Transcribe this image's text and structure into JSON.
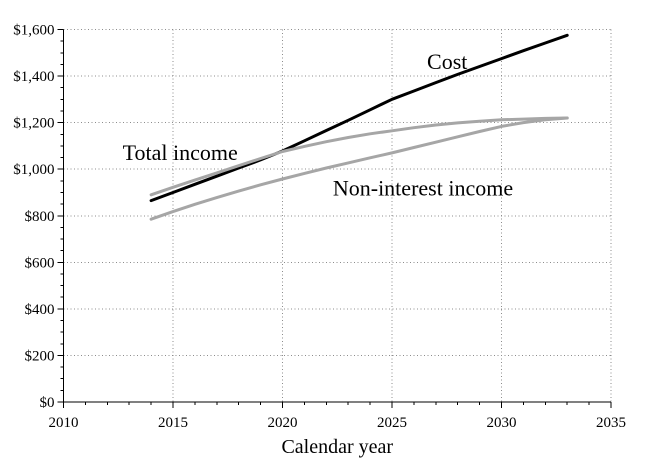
{
  "chart_data": {
    "type": "line",
    "title": "",
    "xlabel": "Calendar year",
    "ylabel": "",
    "xlim": [
      2010,
      2035
    ],
    "ylim": [
      0,
      1600
    ],
    "x_ticks": [
      2010,
      2015,
      2020,
      2025,
      2030,
      2035
    ],
    "y_tick_labels": [
      "$0",
      "$200",
      "$400",
      "$600",
      "$800",
      "$1,000",
      "$1,200",
      "$1,400",
      "$1,600"
    ],
    "x_minor_step": 1,
    "y_minor_step": 50,
    "grid": "dotted",
    "grid_color": "#8c8c8c",
    "axis_color": "#000000",
    "background_color": "#ffffff",
    "legend": "none (labels drawn next to lines)",
    "x": [
      2014,
      2015,
      2016,
      2017,
      2018,
      2019,
      2020,
      2021,
      2022,
      2023,
      2024,
      2025,
      2026,
      2027,
      2028,
      2029,
      2030,
      2031,
      2032,
      2033
    ],
    "series": [
      {
        "name": "Cost",
        "color": "#000000",
        "width": 3,
        "values": [
          865,
          900,
          935,
          970,
          1005,
          1040,
          1078,
          1122,
          1166,
          1210,
          1255,
          1300,
          1336,
          1372,
          1407,
          1441,
          1475,
          1509,
          1542,
          1575
        ]
      },
      {
        "name": "Total income",
        "color": "#a6a6a6",
        "width": 3,
        "values": [
          890,
          922,
          953,
          984,
          1015,
          1046,
          1076,
          1098,
          1118,
          1136,
          1152,
          1165,
          1178,
          1190,
          1199,
          1206,
          1212,
          1215,
          1218,
          1220
        ]
      },
      {
        "name": "Non-interest income",
        "color": "#a6a6a6",
        "width": 3,
        "values": [
          785,
          818,
          849,
          878,
          906,
          933,
          958,
          982,
          1005,
          1027,
          1049,
          1070,
          1093,
          1116,
          1139,
          1162,
          1184,
          1200,
          1212,
          1220
        ]
      }
    ],
    "annotations": [
      {
        "text": "Total income",
        "x": 2012.7,
        "y": 1040,
        "anchor": "start"
      },
      {
        "text": "Cost",
        "x": 2026.6,
        "y": 1430,
        "anchor": "start"
      },
      {
        "text": "Non-interest income",
        "x": 2022.3,
        "y": 888,
        "anchor": "start"
      }
    ]
  }
}
